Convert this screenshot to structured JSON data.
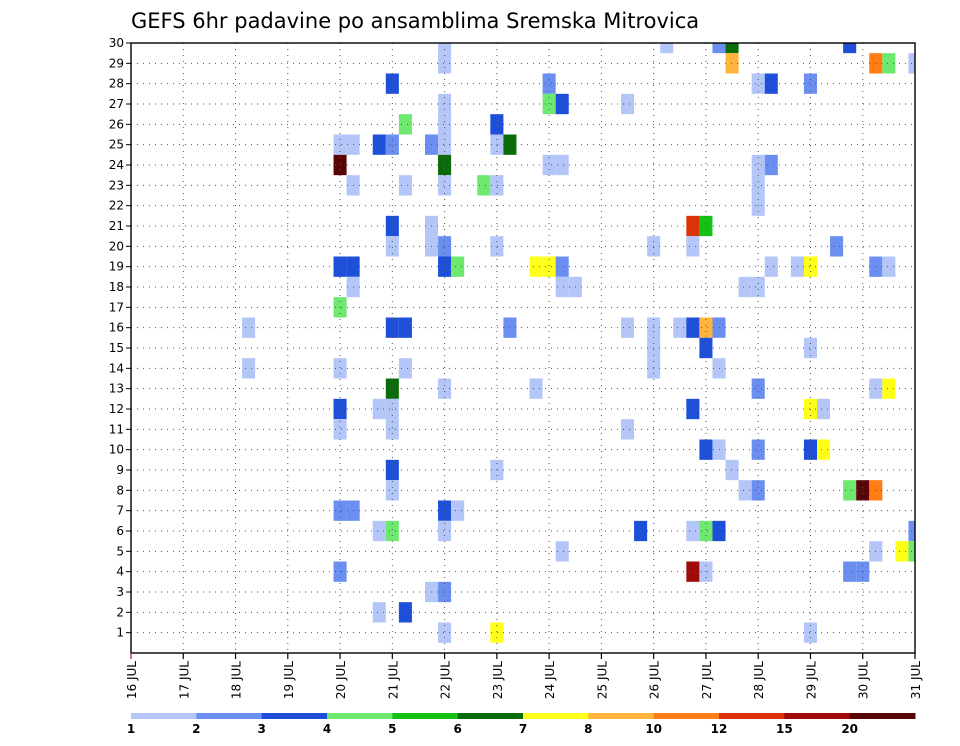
{
  "chart_data": {
    "type": "heatmap",
    "title": "GEFS 6hr padavine po ansamblima Sremska Mitrovica",
    "x_tick_labels": [
      "16 JUL",
      "17 JUL",
      "18 JUL",
      "19 JUL",
      "20 JUL",
      "21 JUL",
      "22 JUL",
      "23 JUL",
      "24 JUL",
      "25 JUL",
      "26 JUL",
      "27 JUL",
      "28 JUL",
      "29 JUL",
      "30 JUL",
      "31 JUL"
    ],
    "y_tick_labels": [
      "1",
      "2",
      "3",
      "4",
      "5",
      "6",
      "7",
      "8",
      "9",
      "10",
      "11",
      "12",
      "13",
      "14",
      "15",
      "16",
      "17",
      "18",
      "19",
      "20",
      "21",
      "22",
      "23",
      "24",
      "25",
      "26",
      "27",
      "28",
      "29",
      "30"
    ],
    "xlim_days": [
      16,
      31
    ],
    "ylim_members": [
      0,
      30
    ],
    "grid": true,
    "legend": {
      "placement": "bottom",
      "labels": [
        "1",
        "2",
        "3",
        "4",
        "5",
        "6",
        "7",
        "8",
        "10",
        "12",
        "15",
        "20"
      ],
      "colors": [
        "#b3c6f7",
        "#6a8ff0",
        "#1e4fd9",
        "#6ee86e",
        "#16c216",
        "#0a6b0a",
        "#ffff1a",
        "#ffb43c",
        "#ff7d14",
        "#dc320a",
        "#a00a0a",
        "#5a0505"
      ]
    },
    "cells": [
      {
        "day": 22,
        "member": 30,
        "level": 0
      },
      {
        "day": 22,
        "member": 29,
        "level": 0
      },
      {
        "day": 26.25,
        "member": 30,
        "level": 0
      },
      {
        "day": 27.25,
        "member": 30,
        "level": 1
      },
      {
        "day": 27.5,
        "member": 30,
        "level": 5
      },
      {
        "day": 27.5,
        "member": 29,
        "level": 7
      },
      {
        "day": 29.75,
        "member": 30,
        "level": 2
      },
      {
        "day": 30.25,
        "member": 29,
        "level": 8
      },
      {
        "day": 30.5,
        "member": 29,
        "level": 3
      },
      {
        "day": 31,
        "member": 29,
        "level": 0
      },
      {
        "day": 21,
        "member": 28,
        "level": 2
      },
      {
        "day": 24,
        "member": 28,
        "level": 1
      },
      {
        "day": 28,
        "member": 28,
        "level": 0
      },
      {
        "day": 28.25,
        "member": 28,
        "level": 2
      },
      {
        "day": 29,
        "member": 28,
        "level": 1
      },
      {
        "day": 22,
        "member": 27,
        "level": 0
      },
      {
        "day": 24,
        "member": 27,
        "level": 3
      },
      {
        "day": 24.25,
        "member": 27,
        "level": 2
      },
      {
        "day": 25.5,
        "member": 27,
        "level": 0
      },
      {
        "day": 21.25,
        "member": 26,
        "level": 3
      },
      {
        "day": 22,
        "member": 26,
        "level": 0
      },
      {
        "day": 23,
        "member": 26,
        "level": 2
      },
      {
        "day": 20,
        "member": 25,
        "level": 0
      },
      {
        "day": 20.25,
        "member": 25,
        "level": 0
      },
      {
        "day": 20.75,
        "member": 25,
        "level": 2
      },
      {
        "day": 21,
        "member": 25,
        "level": 1
      },
      {
        "day": 21.75,
        "member": 25,
        "level": 1
      },
      {
        "day": 22,
        "member": 25,
        "level": 0
      },
      {
        "day": 23,
        "member": 25,
        "level": 0
      },
      {
        "day": 23.25,
        "member": 25,
        "level": 5
      },
      {
        "day": 20,
        "member": 24,
        "level": 11
      },
      {
        "day": 22,
        "member": 24,
        "level": 5
      },
      {
        "day": 24,
        "member": 24,
        "level": 0
      },
      {
        "day": 24.25,
        "member": 24,
        "level": 0
      },
      {
        "day": 28,
        "member": 24,
        "level": 0
      },
      {
        "day": 28.25,
        "member": 24,
        "level": 1
      },
      {
        "day": 20.25,
        "member": 23,
        "level": 0
      },
      {
        "day": 21.25,
        "member": 23,
        "level": 0
      },
      {
        "day": 22,
        "member": 23,
        "level": 0
      },
      {
        "day": 22.75,
        "member": 23,
        "level": 3
      },
      {
        "day": 23,
        "member": 23,
        "level": 0
      },
      {
        "day": 28,
        "member": 23,
        "level": 0
      },
      {
        "day": 28,
        "member": 22,
        "level": 0
      },
      {
        "day": 21,
        "member": 21,
        "level": 2
      },
      {
        "day": 21.75,
        "member": 21,
        "level": 0
      },
      {
        "day": 26.75,
        "member": 21,
        "level": 9
      },
      {
        "day": 27,
        "member": 21,
        "level": 4
      },
      {
        "day": 21,
        "member": 20,
        "level": 0
      },
      {
        "day": 21.75,
        "member": 20,
        "level": 0
      },
      {
        "day": 22,
        "member": 20,
        "level": 1
      },
      {
        "day": 23,
        "member": 20,
        "level": 0
      },
      {
        "day": 26,
        "member": 20,
        "level": 0
      },
      {
        "day": 26.75,
        "member": 20,
        "level": 0
      },
      {
        "day": 29.5,
        "member": 20,
        "level": 1
      },
      {
        "day": 20,
        "member": 19,
        "level": 2
      },
      {
        "day": 20.25,
        "member": 19,
        "level": 2
      },
      {
        "day": 22,
        "member": 19,
        "level": 2
      },
      {
        "day": 22.25,
        "member": 19,
        "level": 3
      },
      {
        "day": 23.75,
        "member": 19,
        "level": 6
      },
      {
        "day": 24,
        "member": 19,
        "level": 6
      },
      {
        "day": 24.25,
        "member": 19,
        "level": 1
      },
      {
        "day": 28.25,
        "member": 19,
        "level": 0
      },
      {
        "day": 28.75,
        "member": 19,
        "level": 0
      },
      {
        "day": 29,
        "member": 19,
        "level": 6
      },
      {
        "day": 30.25,
        "member": 19,
        "level": 1
      },
      {
        "day": 30.5,
        "member": 19,
        "level": 0
      },
      {
        "day": 20.25,
        "member": 18,
        "level": 0
      },
      {
        "day": 24.25,
        "member": 18,
        "level": 0
      },
      {
        "day": 24.5,
        "member": 18,
        "level": 0
      },
      {
        "day": 27.75,
        "member": 18,
        "level": 0
      },
      {
        "day": 28,
        "member": 18,
        "level": 0
      },
      {
        "day": 20,
        "member": 17,
        "level": 3
      },
      {
        "day": 18.25,
        "member": 16,
        "level": 0
      },
      {
        "day": 21,
        "member": 16,
        "level": 2
      },
      {
        "day": 21.25,
        "member": 16,
        "level": 2
      },
      {
        "day": 23.25,
        "member": 16,
        "level": 1
      },
      {
        "day": 25.5,
        "member": 16,
        "level": 0
      },
      {
        "day": 26,
        "member": 16,
        "level": 0
      },
      {
        "day": 26.5,
        "member": 16,
        "level": 0
      },
      {
        "day": 26.75,
        "member": 16,
        "level": 2
      },
      {
        "day": 27,
        "member": 16,
        "level": 7
      },
      {
        "day": 27.25,
        "member": 16,
        "level": 1
      },
      {
        "day": 26,
        "member": 15,
        "level": 0
      },
      {
        "day": 27,
        "member": 15,
        "level": 2
      },
      {
        "day": 29,
        "member": 15,
        "level": 0
      },
      {
        "day": 18.25,
        "member": 14,
        "level": 0
      },
      {
        "day": 20,
        "member": 14,
        "level": 0
      },
      {
        "day": 21.25,
        "member": 14,
        "level": 0
      },
      {
        "day": 26,
        "member": 14,
        "level": 0
      },
      {
        "day": 27.25,
        "member": 14,
        "level": 0
      },
      {
        "day": 21,
        "member": 13,
        "level": 5
      },
      {
        "day": 22,
        "member": 13,
        "level": 0
      },
      {
        "day": 23.75,
        "member": 13,
        "level": 0
      },
      {
        "day": 28,
        "member": 13,
        "level": 1
      },
      {
        "day": 30.25,
        "member": 13,
        "level": 0
      },
      {
        "day": 30.5,
        "member": 13,
        "level": 6
      },
      {
        "day": 20,
        "member": 12,
        "level": 2
      },
      {
        "day": 20.75,
        "member": 12,
        "level": 0
      },
      {
        "day": 21,
        "member": 12,
        "level": 0
      },
      {
        "day": 26.75,
        "member": 12,
        "level": 2
      },
      {
        "day": 29,
        "member": 12,
        "level": 6
      },
      {
        "day": 29.25,
        "member": 12,
        "level": 0
      },
      {
        "day": 20,
        "member": 11,
        "level": 0
      },
      {
        "day": 21,
        "member": 11,
        "level": 0
      },
      {
        "day": 25.5,
        "member": 11,
        "level": 0
      },
      {
        "day": 27,
        "member": 10,
        "level": 2
      },
      {
        "day": 27.25,
        "member": 10,
        "level": 0
      },
      {
        "day": 28,
        "member": 10,
        "level": 1
      },
      {
        "day": 29,
        "member": 10,
        "level": 2
      },
      {
        "day": 29.25,
        "member": 10,
        "level": 6
      },
      {
        "day": 21,
        "member": 9,
        "level": 2
      },
      {
        "day": 23,
        "member": 9,
        "level": 0
      },
      {
        "day": 27.5,
        "member": 9,
        "level": 0
      },
      {
        "day": 21,
        "member": 8,
        "level": 0
      },
      {
        "day": 27.75,
        "member": 8,
        "level": 0
      },
      {
        "day": 28,
        "member": 8,
        "level": 1
      },
      {
        "day": 29.75,
        "member": 8,
        "level": 3
      },
      {
        "day": 30,
        "member": 8,
        "level": 11
      },
      {
        "day": 30.25,
        "member": 8,
        "level": 8
      },
      {
        "day": 20,
        "member": 7,
        "level": 1
      },
      {
        "day": 20.25,
        "member": 7,
        "level": 1
      },
      {
        "day": 22,
        "member": 7,
        "level": 2
      },
      {
        "day": 22.25,
        "member": 7,
        "level": 0
      },
      {
        "day": 20.75,
        "member": 6,
        "level": 0
      },
      {
        "day": 21,
        "member": 6,
        "level": 3
      },
      {
        "day": 22,
        "member": 6,
        "level": 0
      },
      {
        "day": 25.75,
        "member": 6,
        "level": 2
      },
      {
        "day": 26.75,
        "member": 6,
        "level": 0
      },
      {
        "day": 27,
        "member": 6,
        "level": 3
      },
      {
        "day": 27.25,
        "member": 6,
        "level": 2
      },
      {
        "day": 31,
        "member": 6,
        "level": 1
      },
      {
        "day": 24.25,
        "member": 5,
        "level": 0
      },
      {
        "day": 30.25,
        "member": 5,
        "level": 0
      },
      {
        "day": 30.75,
        "member": 5,
        "level": 6
      },
      {
        "day": 31,
        "member": 5,
        "level": 3
      },
      {
        "day": 20,
        "member": 4,
        "level": 1
      },
      {
        "day": 26.75,
        "member": 4,
        "level": 10
      },
      {
        "day": 27,
        "member": 4,
        "level": 0
      },
      {
        "day": 29.75,
        "member": 4,
        "level": 1
      },
      {
        "day": 30,
        "member": 4,
        "level": 1
      },
      {
        "day": 21.75,
        "member": 3,
        "level": 0
      },
      {
        "day": 22,
        "member": 3,
        "level": 1
      },
      {
        "day": 20.75,
        "member": 2,
        "level": 0
      },
      {
        "day": 21.25,
        "member": 2,
        "level": 2
      },
      {
        "day": 22,
        "member": 1,
        "level": 0
      },
      {
        "day": 23,
        "member": 1,
        "level": 6
      },
      {
        "day": 29,
        "member": 1,
        "level": 0
      }
    ]
  }
}
